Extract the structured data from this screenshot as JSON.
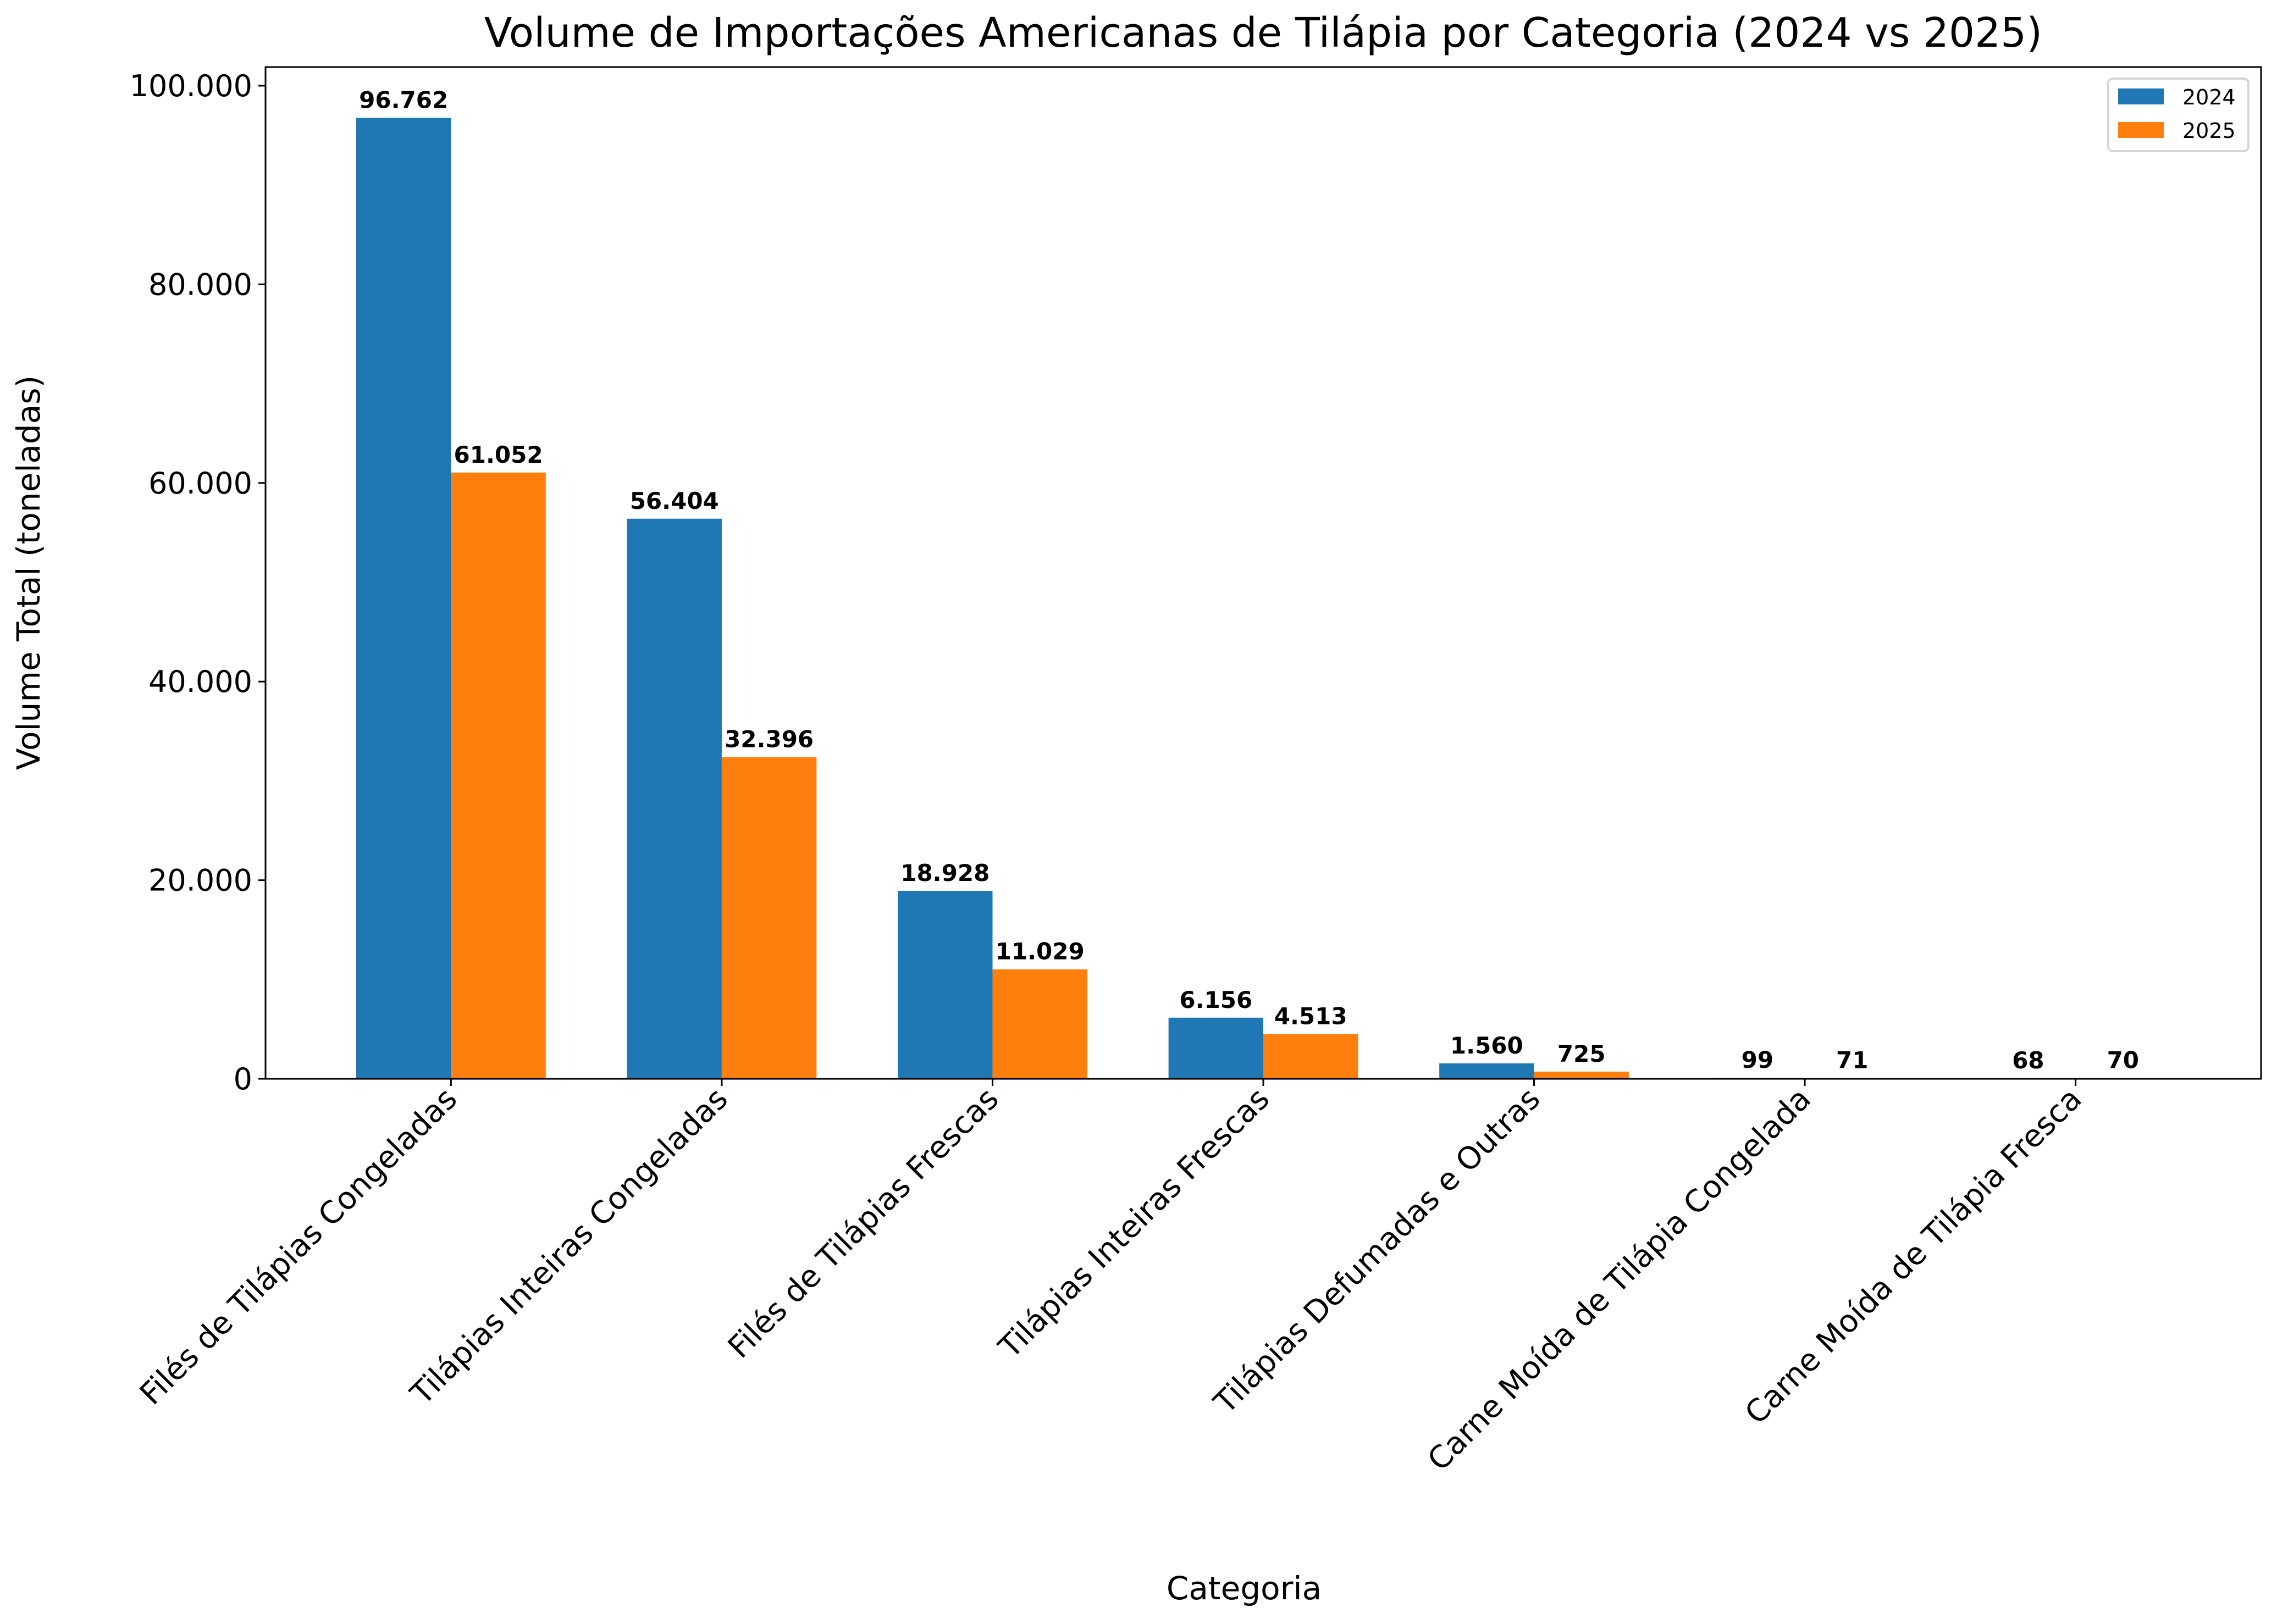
{
  "chart_data": {
    "type": "bar",
    "title": "Volume de Importações Americanas de Tilápia por Categoria (2024 vs 2025)",
    "xlabel": "Categoria",
    "ylabel": "Volume Total (toneladas)",
    "categories": [
      "Filés de Tilápias Congeladas",
      "Tilápias Inteiras Congeladas",
      "Filés de Tilápias Frescas",
      "Tilápias Inteiras Frescas",
      "Tilápias Defumadas e Outras",
      "Carne Moída de Tilápia Congelada",
      "Carne Moída de Tilápia Fresca"
    ],
    "series": [
      {
        "name": "2024",
        "color": "#1f77b4",
        "values": [
          96762,
          56404,
          18928,
          6156,
          1560,
          99,
          68
        ],
        "labels": [
          "96.762",
          "56.404",
          "18.928",
          "6.156",
          "1.560",
          "99",
          "68"
        ]
      },
      {
        "name": "2025",
        "color": "#ff7f0e",
        "values": [
          61052,
          32396,
          11029,
          4513,
          725,
          71,
          70
        ],
        "labels": [
          "61.052",
          "32.396",
          "11.029",
          "4.513",
          "725",
          "71",
          "70"
        ]
      }
    ],
    "ylim": [
      0,
      101880
    ],
    "yticks": [
      0,
      20000,
      40000,
      60000,
      80000,
      100000
    ],
    "ytick_labels": [
      "0",
      "20.000",
      "40.000",
      "60.000",
      "80.000",
      "100.000"
    ],
    "legend": "top-right",
    "grid": false
  }
}
